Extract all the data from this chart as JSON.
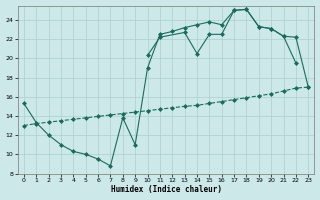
{
  "xlabel": "Humidex (Indice chaleur)",
  "bg_color": "#cce8e8",
  "grid_color": "#aacfcf",
  "line_color": "#1a6b5e",
  "xlim": [
    -0.5,
    23.5
  ],
  "ylim": [
    8,
    25.5
  ],
  "xtick_labels": [
    "0",
    "1",
    "2",
    "3",
    "4",
    "5",
    "6",
    "7",
    "8",
    "9",
    "10",
    "11",
    "12",
    "13",
    "14",
    "15",
    "16",
    "17",
    "18",
    "19",
    "20",
    "21",
    "22",
    "23"
  ],
  "xtick_vals": [
    0,
    1,
    2,
    3,
    4,
    5,
    6,
    7,
    8,
    9,
    10,
    11,
    12,
    13,
    14,
    15,
    16,
    17,
    18,
    19,
    20,
    21,
    22,
    23
  ],
  "ytick_vals": [
    8,
    10,
    12,
    14,
    16,
    18,
    20,
    22,
    24
  ],
  "line1_x": [
    0,
    1,
    2,
    3,
    4,
    5,
    6,
    7,
    8,
    9,
    10,
    11,
    12,
    13,
    14,
    15,
    16,
    17,
    18,
    19,
    20,
    21,
    22
  ],
  "line1_y": [
    15.3,
    13.3,
    12.0,
    11.0,
    10.3,
    10.0,
    9.5,
    8.8,
    13.8,
    11.0,
    19.0,
    22.5,
    22.8,
    23.2,
    23.5,
    23.8,
    23.5,
    25.0,
    25.1,
    23.3,
    23.1,
    22.3,
    19.5
  ],
  "line2_x": [
    0,
    1,
    2,
    3,
    4,
    5,
    6,
    7,
    8,
    9,
    10,
    11,
    12,
    13,
    14,
    15,
    16,
    17,
    18,
    19,
    20,
    21,
    22,
    23
  ],
  "line2_y": [
    13.0,
    13.2,
    13.35,
    13.5,
    13.65,
    13.8,
    13.95,
    14.1,
    14.25,
    14.4,
    14.55,
    14.7,
    14.85,
    15.0,
    15.1,
    15.3,
    15.5,
    15.7,
    15.9,
    16.1,
    16.3,
    16.6,
    16.9,
    17.0
  ],
  "line3_x": [
    10,
    11,
    13,
    14,
    15,
    16,
    17,
    18,
    19,
    20,
    21,
    22,
    23
  ],
  "line3_y": [
    20.3,
    22.2,
    22.7,
    20.5,
    22.5,
    22.5,
    25.0,
    25.1,
    23.3,
    23.1,
    22.3,
    22.2,
    17.0
  ]
}
